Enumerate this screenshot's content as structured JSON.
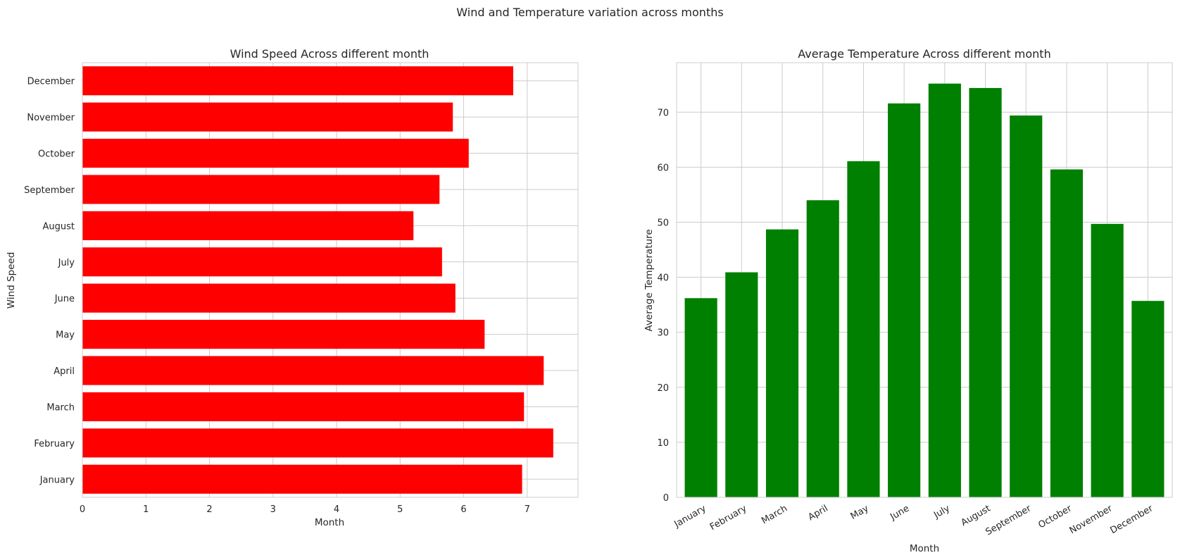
{
  "figure": {
    "title": "Wind and Temperature variation across months"
  },
  "chart_data": [
    {
      "type": "bar",
      "orientation": "horizontal",
      "title": "Wind Speed Across different month",
      "xlabel": "Month",
      "ylabel": "Wind Speed",
      "categories": [
        "January",
        "February",
        "March",
        "April",
        "May",
        "June",
        "July",
        "August",
        "September",
        "October",
        "November",
        "December"
      ],
      "values": [
        6.92,
        7.41,
        6.95,
        7.26,
        6.33,
        5.87,
        5.66,
        5.21,
        5.62,
        6.08,
        5.83,
        6.78
      ],
      "xlim": [
        0,
        7.8
      ],
      "xticks": [
        0,
        1,
        2,
        3,
        4,
        5,
        6,
        7
      ],
      "color": "#ff0000",
      "grid": true,
      "legend": "none"
    },
    {
      "type": "bar",
      "orientation": "vertical",
      "title": "Average Temperature Across different month",
      "xlabel": "Month",
      "ylabel": "Average Temperature",
      "categories": [
        "January",
        "February",
        "March",
        "April",
        "May",
        "June",
        "July",
        "August",
        "September",
        "October",
        "November",
        "December"
      ],
      "values": [
        36.2,
        40.9,
        48.7,
        54.0,
        61.1,
        71.6,
        75.2,
        74.4,
        69.4,
        59.6,
        49.7,
        35.7
      ],
      "ylim": [
        0,
        79
      ],
      "yticks": [
        0,
        10,
        20,
        30,
        40,
        50,
        60,
        70
      ],
      "color": "#008000",
      "grid": true,
      "legend": "none"
    }
  ]
}
